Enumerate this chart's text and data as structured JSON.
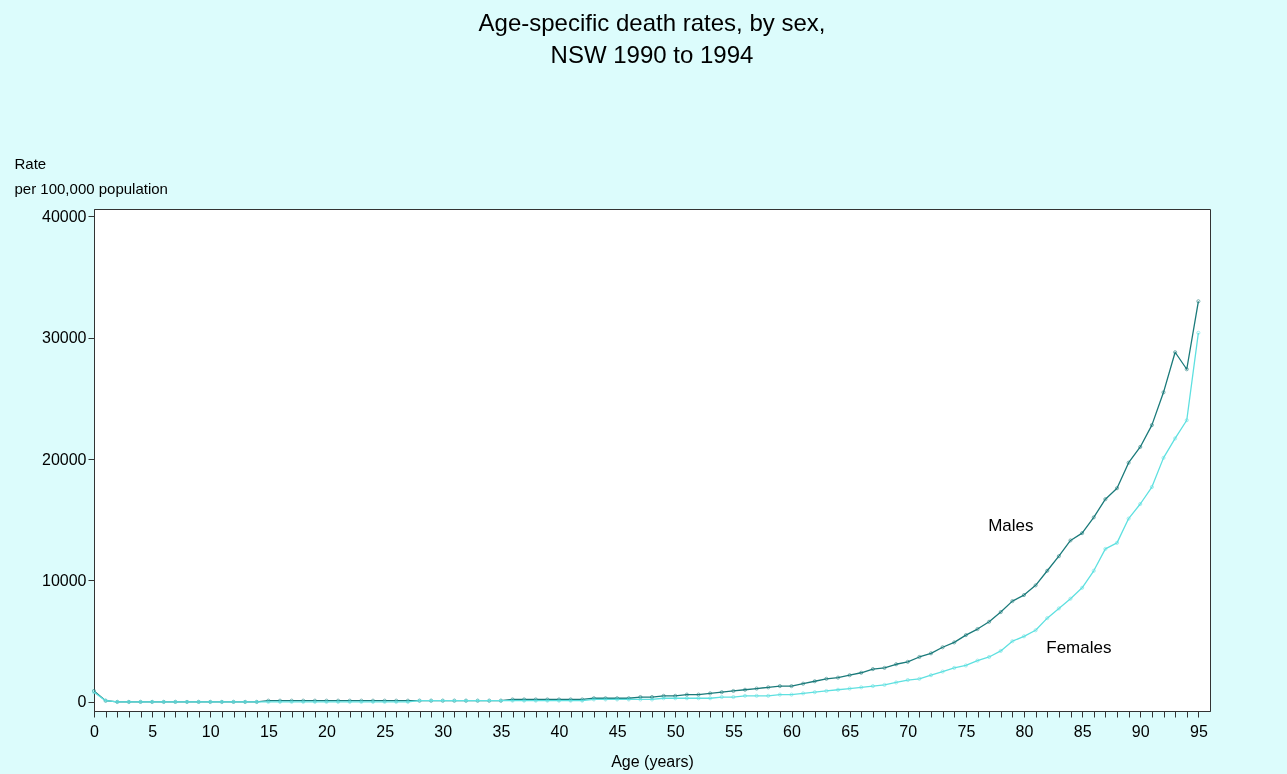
{
  "chart_data": {
    "type": "line",
    "title": [
      "Age-specific death rates, by sex,",
      "NSW 1990 to 1994"
    ],
    "ylabel": [
      "Rate",
      "per 100,000 population"
    ],
    "xlabel": "Age (years)",
    "x": [
      0,
      1,
      2,
      3,
      4,
      5,
      6,
      7,
      8,
      9,
      10,
      11,
      12,
      13,
      14,
      15,
      16,
      17,
      18,
      19,
      20,
      21,
      22,
      23,
      24,
      25,
      26,
      27,
      28,
      29,
      30,
      31,
      32,
      33,
      34,
      35,
      36,
      37,
      38,
      39,
      40,
      41,
      42,
      43,
      44,
      45,
      46,
      47,
      48,
      49,
      50,
      51,
      52,
      53,
      54,
      55,
      56,
      57,
      58,
      59,
      60,
      61,
      62,
      63,
      64,
      65,
      66,
      67,
      68,
      69,
      70,
      71,
      72,
      73,
      74,
      75,
      76,
      77,
      78,
      79,
      80,
      81,
      82,
      83,
      84,
      85,
      86,
      87,
      88,
      89,
      90,
      91,
      92,
      93,
      94,
      95
    ],
    "series": [
      {
        "name": "Males",
        "color": "#1a7a7a",
        "values": [
          900,
          100,
          0,
          0,
          0,
          0,
          0,
          0,
          0,
          0,
          0,
          0,
          0,
          0,
          0,
          100,
          100,
          100,
          100,
          100,
          100,
          100,
          100,
          100,
          100,
          100,
          100,
          100,
          100,
          100,
          100,
          100,
          100,
          100,
          100,
          100,
          200,
          200,
          200,
          200,
          200,
          200,
          200,
          300,
          300,
          300,
          300,
          400,
          400,
          500,
          500,
          600,
          600,
          700,
          800,
          900,
          1000,
          1100,
          1200,
          1300,
          1300,
          1500,
          1700,
          1900,
          2000,
          2200,
          2400,
          2700,
          2800,
          3100,
          3300,
          3700,
          4000,
          4500,
          4900,
          5500,
          6000,
          6600,
          7400,
          8300,
          8800,
          9600,
          10800,
          12000,
          13300,
          13900,
          15200,
          16700,
          17600,
          19700,
          21000,
          22800,
          25500,
          28800,
          27400,
          33000
        ]
      },
      {
        "name": "Females",
        "color": "#5ee0e0",
        "values": [
          800,
          100,
          0,
          0,
          0,
          0,
          0,
          0,
          0,
          0,
          0,
          0,
          0,
          0,
          0,
          0,
          0,
          0,
          0,
          0,
          0,
          0,
          0,
          0,
          0,
          0,
          0,
          0,
          100,
          100,
          100,
          100,
          100,
          100,
          100,
          100,
          100,
          100,
          100,
          100,
          100,
          100,
          100,
          200,
          200,
          200,
          200,
          200,
          200,
          300,
          300,
          300,
          300,
          300,
          400,
          400,
          500,
          500,
          500,
          600,
          600,
          700,
          800,
          900,
          1000,
          1100,
          1200,
          1300,
          1400,
          1600,
          1800,
          1900,
          2200,
          2500,
          2800,
          3000,
          3400,
          3700,
          4200,
          5000,
          5400,
          5900,
          6900,
          7700,
          8500,
          9400,
          10800,
          12600,
          13100,
          15100,
          16300,
          17700,
          20100,
          21700,
          23200,
          30400
        ]
      }
    ],
    "xlim": [
      0,
      96
    ],
    "xticks": [
      0,
      {
        "value": 1,
        "label": null
      },
      {
        "value": 2,
        "label": null
      },
      {
        "value": 3,
        "label": null
      },
      {
        "value": 4,
        "label": null
      },
      5,
      {
        "value": 6,
        "label": null
      },
      {
        "value": 7,
        "label": null
      },
      {
        "value": 8,
        "label": null
      },
      {
        "value": 9,
        "label": null
      },
      10,
      {
        "value": 11,
        "label": null
      },
      {
        "value": 12,
        "label": null
      },
      {
        "value": 13,
        "label": null
      },
      {
        "value": 14,
        "label": null
      },
      15,
      {
        "value": 16,
        "label": null
      },
      {
        "value": 17,
        "label": null
      },
      {
        "value": 18,
        "label": null
      },
      {
        "value": 19,
        "label": null
      },
      20,
      {
        "value": 21,
        "label": null
      },
      {
        "value": 22,
        "label": null
      },
      {
        "value": 23,
        "label": null
      },
      {
        "value": 24,
        "label": null
      },
      25,
      {
        "value": 26,
        "label": null
      },
      {
        "value": 27,
        "label": null
      },
      {
        "value": 28,
        "label": null
      },
      {
        "value": 29,
        "label": null
      },
      30,
      {
        "value": 31,
        "label": null
      },
      {
        "value": 32,
        "label": null
      },
      {
        "value": 33,
        "label": null
      },
      {
        "value": 34,
        "label": null
      },
      35,
      {
        "value": 36,
        "label": null
      },
      {
        "value": 37,
        "label": null
      },
      {
        "value": 38,
        "label": null
      },
      {
        "value": 39,
        "label": null
      },
      40,
      {
        "value": 41,
        "label": null
      },
      {
        "value": 42,
        "label": null
      },
      {
        "value": 43,
        "label": null
      },
      {
        "value": 44,
        "label": null
      },
      45,
      {
        "value": 46,
        "label": null
      },
      {
        "value": 47,
        "label": null
      },
      {
        "value": 48,
        "label": null
      },
      {
        "value": 49,
        "label": null
      },
      50,
      {
        "value": 51,
        "label": null
      },
      {
        "value": 52,
        "label": null
      },
      {
        "value": 53,
        "label": null
      },
      {
        "value": 54,
        "label": null
      },
      55,
      {
        "value": 56,
        "label": null
      },
      {
        "value": 57,
        "label": null
      },
      {
        "value": 58,
        "label": null
      },
      {
        "value": 59,
        "label": null
      },
      60,
      {
        "value": 61,
        "label": null
      },
      {
        "value": 62,
        "label": null
      },
      {
        "value": 63,
        "label": null
      },
      {
        "value": 64,
        "label": null
      },
      65,
      {
        "value": 66,
        "label": null
      },
      {
        "value": 67,
        "label": null
      },
      {
        "value": 68,
        "label": null
      },
      {
        "value": 69,
        "label": null
      },
      70,
      {
        "value": 71,
        "label": null
      },
      {
        "value": 72,
        "label": null
      },
      {
        "value": 73,
        "label": null
      },
      {
        "value": 74,
        "label": null
      },
      75,
      {
        "value": 76,
        "label": null
      },
      {
        "value": 77,
        "label": null
      },
      {
        "value": 78,
        "label": null
      },
      {
        "value": 79,
        "label": null
      },
      80,
      {
        "value": 81,
        "label": null
      },
      {
        "value": 82,
        "label": null
      },
      {
        "value": 83,
        "label": null
      },
      {
        "value": 84,
        "label": null
      },
      85,
      {
        "value": 86,
        "label": null
      },
      {
        "value": 87,
        "label": null
      },
      {
        "value": 88,
        "label": null
      },
      {
        "value": 89,
        "label": null
      },
      90,
      {
        "value": 91,
        "label": null
      },
      {
        "value": 92,
        "label": null
      },
      {
        "value": 93,
        "label": null
      },
      {
        "value": 94,
        "label": null
      },
      95
    ],
    "ylim": [
      -750,
      40600
    ],
    "yticks": [
      0,
      10000,
      20000,
      30000,
      40000
    ],
    "marker": "circle",
    "line_style": "solid",
    "grid": false,
    "legend": false
  }
}
